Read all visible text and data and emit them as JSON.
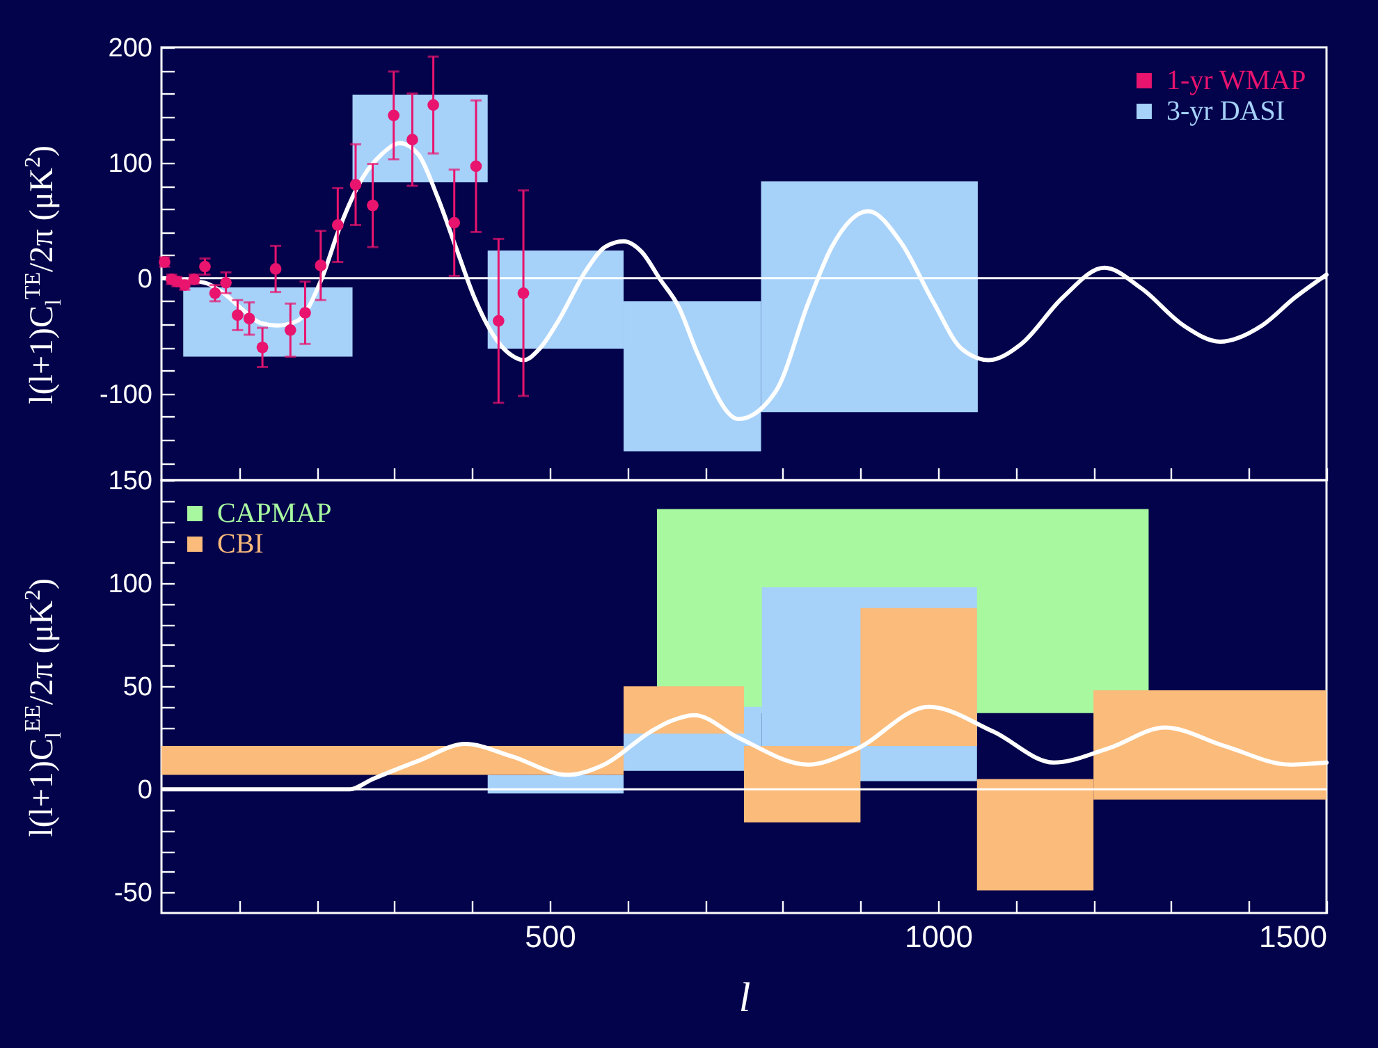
{
  "chart_data": [
    {
      "type": "histogram",
      "ylabel": "l(l+1)C$_{l}$$^{TE}$/2π (μK$^{2}$)",
      "xlim": [
        0,
        1500
      ],
      "xticks": [
        {
          "value": 100,
          "label": null
        },
        {
          "value": 200,
          "label": null
        },
        {
          "value": 300,
          "label": null
        },
        {
          "value": 400,
          "label": null
        },
        500,
        {
          "value": 600,
          "label": null
        },
        {
          "value": 700,
          "label": null
        },
        {
          "value": 800,
          "label": null
        },
        {
          "value": 900,
          "label": null
        },
        1000,
        {
          "value": 1100,
          "label": null
        },
        {
          "value": 1200,
          "label": null
        },
        {
          "value": 1300,
          "label": null
        },
        {
          "value": 1400,
          "label": null
        },
        1500
      ],
      "ylim": [
        -175,
        200
      ],
      "yticks": [
        {
          "value": -160,
          "label": null
        },
        {
          "value": -140,
          "label": null
        },
        {
          "value": -120,
          "label": null
        },
        -100,
        {
          "value": -80,
          "label": null
        },
        {
          "value": -60,
          "label": null
        },
        {
          "value": -40,
          "label": null
        },
        {
          "value": -20,
          "label": null
        },
        0,
        {
          "value": 20,
          "label": null
        },
        {
          "value": 40,
          "label": null
        },
        {
          "value": 60,
          "label": null
        },
        {
          "value": 80,
          "label": null
        },
        100,
        {
          "value": 120,
          "label": null
        },
        {
          "value": 140,
          "label": null
        },
        {
          "value": 160,
          "label": null
        },
        {
          "value": 180,
          "label": null
        },
        200
      ],
      "tick_labels": "y",
      "legend": "top right",
      "ref_lines": [
        {
          "axis": "y",
          "value": 0,
          "color": "#ffffff"
        }
      ],
      "series": [
        {
          "name": "1-yr WMAP",
          "type": "scatter",
          "color": "#e8146e",
          "marker": "circle",
          "x": [
            4,
            13,
            20,
            30,
            42,
            56,
            69,
            83,
            98,
            113,
            130,
            147,
            166,
            185,
            205,
            227,
            250,
            272,
            299,
            323,
            350,
            377,
            405,
            434,
            466
          ],
          "values": [
            14,
            -1,
            -3,
            -6,
            -1,
            10,
            -13,
            -4,
            -32,
            -35,
            -60,
            8,
            -45,
            -30,
            11,
            46,
            81,
            63,
            141,
            120,
            150,
            48,
            97,
            -37,
            -13
          ],
          "errors": [
            4,
            4,
            4,
            4,
            4,
            7,
            7,
            9,
            13,
            14,
            17,
            20,
            23,
            27,
            30,
            32,
            35,
            36,
            38,
            40,
            42,
            46,
            57,
            71,
            89
          ]
        },
        {
          "name": "3-yr DASI",
          "color": "#a6d2fa",
          "bins": [
            28,
            246,
            420,
            595,
            772,
            1051
          ],
          "base": [
            -68,
            83,
            -61,
            -150,
            -116
          ],
          "values": [
            60,
            76,
            85,
            130,
            200
          ]
        },
        {
          "type": "line",
          "color": "#ffffff",
          "x": [
            2,
            30,
            56,
            80,
            104,
            128,
            149,
            175,
            206,
            229,
            259,
            283,
            307,
            331,
            355,
            379,
            403,
            427,
            451,
            466,
            487,
            511,
            547,
            571,
            595,
            618,
            642,
            666,
            690,
            743,
            791,
            833,
            863,
            910,
            952,
            994,
            1030,
            1065,
            1107,
            1160,
            1214,
            1262,
            1316,
            1363,
            1417,
            1459,
            1500
          ],
          "values": [
            0,
            -2,
            -4,
            -13,
            -27,
            -39,
            -41,
            -37,
            -1,
            43,
            87,
            107,
            117,
            107,
            71,
            27,
            -17,
            -49,
            -67,
            -71,
            -61,
            -37,
            7,
            27,
            32,
            23,
            -1,
            -25,
            -65,
            -122,
            -98,
            -21,
            27,
            58,
            31,
            -21,
            -61,
            -71,
            -57,
            -17,
            9,
            -9,
            -41,
            -55,
            -41,
            -17,
            3
          ]
        }
      ]
    },
    {
      "type": "histogram",
      "ylabel": "l(l+1)C$_{l}$$^{EE}$/2π (μK$^{2}$)",
      "xlabel": "l",
      "xlim": [
        0,
        1500
      ],
      "xticks": [
        {
          "value": 100,
          "label": null
        },
        {
          "value": 200,
          "label": null
        },
        {
          "value": 300,
          "label": null
        },
        {
          "value": 400,
          "label": null
        },
        500,
        {
          "value": 600,
          "label": null
        },
        {
          "value": 700,
          "label": null
        },
        {
          "value": 800,
          "label": null
        },
        {
          "value": 900,
          "label": null
        },
        1000,
        {
          "value": 1100,
          "label": null
        },
        {
          "value": 1200,
          "label": null
        },
        {
          "value": 1300,
          "label": null
        },
        {
          "value": 1400,
          "label": null
        },
        1500
      ],
      "ylim": [
        -60,
        150
      ],
      "yticks": [
        -50,
        {
          "value": -40,
          "label": null
        },
        {
          "value": -30,
          "label": null
        },
        {
          "value": -20,
          "label": null
        },
        {
          "value": -10,
          "label": null
        },
        0,
        {
          "value": 10,
          "label": null
        },
        {
          "value": 20,
          "label": null
        },
        {
          "value": 30,
          "label": null
        },
        {
          "value": 40,
          "label": null
        },
        50,
        {
          "value": 60,
          "label": null
        },
        {
          "value": 70,
          "label": null
        },
        {
          "value": 80,
          "label": null
        },
        {
          "value": 90,
          "label": null
        },
        100,
        {
          "value": 110,
          "label": null
        },
        {
          "value": 120,
          "label": null
        },
        {
          "value": 130,
          "label": null
        },
        {
          "value": 140,
          "label": null
        },
        150
      ],
      "legend": "top left",
      "ref_lines": [
        {
          "axis": "y",
          "value": 0,
          "color": "#ffffff"
        }
      ],
      "series": [
        {
          "name": "CAPMAP",
          "color": "#a8f8a0",
          "bins": [
            638,
            1271
          ],
          "base": [
            37
          ],
          "values": [
            99
          ]
        },
        {
          "color": "#a6d2fa",
          "bins": [
            420,
            595,
            773,
            1050
          ],
          "base": [
            -2,
            9,
            4
          ],
          "values": [
            9,
            31,
            94
          ]
        },
        {
          "name": "CBI",
          "color": "#fbbb7a",
          "bins": [
            0,
            595,
            750,
            900,
            1050,
            1200,
            1500
          ],
          "base": [
            7,
            27,
            -16,
            21,
            -49,
            -5
          ],
          "values": [
            14,
            23,
            37,
            67,
            54,
            53
          ]
        },
        {
          "type": "line",
          "color": "#ffffff",
          "x": [
            2,
            100,
            200,
            242,
            272,
            332,
            391,
            451,
            523,
            570,
            630,
            655,
            686,
            743,
            833,
            892,
            988,
            1071,
            1149,
            1220,
            1292,
            1369,
            1453,
            1500
          ],
          "values": [
            0,
            0,
            0,
            0,
            5,
            14,
            22,
            16,
            7,
            12,
            28,
            33,
            36,
            25,
            12,
            19,
            40,
            28,
            13,
            20,
            30,
            21,
            12,
            13
          ]
        }
      ]
    }
  ]
}
